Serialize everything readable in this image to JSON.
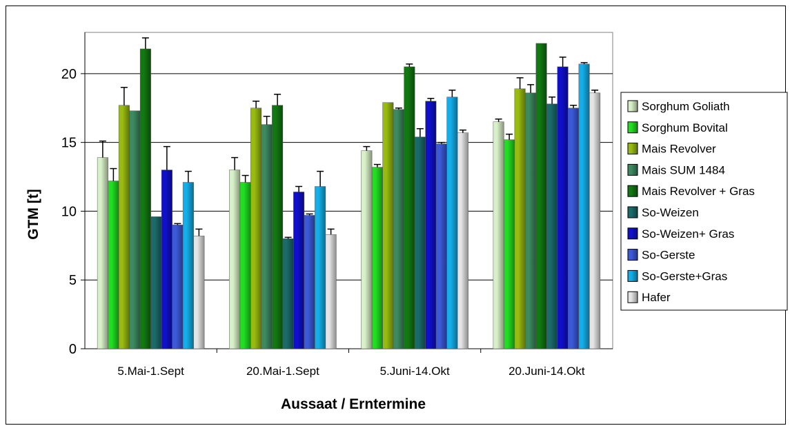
{
  "chart_data": {
    "type": "bar",
    "title": "",
    "xlabel": "Aussaat / Erntermine",
    "ylabel": "GTM [t]",
    "ylim": [
      0,
      23
    ],
    "yticks": [
      0,
      5,
      10,
      15,
      20
    ],
    "grid": true,
    "legend_position": "right",
    "categories": [
      "5.Mai-1.Sept",
      "20.Mai-1.Sept",
      "5.Juni-14.Okt",
      "20.Juni-14.Okt"
    ],
    "series": [
      {
        "name": "Sorghum Goliath",
        "color": "#d8f0c8",
        "values": [
          13.9,
          13.0,
          14.4,
          16.5
        ],
        "errors": [
          1.2,
          0.9,
          0.3,
          0.2
        ]
      },
      {
        "name": "Sorghum Bovital",
        "color": "#22dd22",
        "values": [
          12.2,
          12.1,
          13.2,
          15.2
        ],
        "errors": [
          0.9,
          0.5,
          0.2,
          0.4
        ]
      },
      {
        "name": "Mais Revolver",
        "color": "#99bb11",
        "values": [
          17.7,
          17.5,
          17.9,
          18.9
        ],
        "errors": [
          1.3,
          0.5,
          0.0,
          0.8
        ]
      },
      {
        "name": "Mais SUM 1484",
        "color": "#3d8a60",
        "values": [
          17.3,
          16.3,
          17.4,
          18.6
        ],
        "errors": [
          0.0,
          0.6,
          0.1,
          0.6
        ]
      },
      {
        "name": "Mais Revolver + Gras",
        "color": "#127812",
        "values": [
          21.8,
          17.7,
          20.5,
          22.2
        ],
        "errors": [
          0.8,
          0.8,
          0.2,
          0.0
        ]
      },
      {
        "name": "So-Weizen",
        "color": "#1c6b6b",
        "values": [
          9.6,
          8.0,
          15.4,
          17.8
        ],
        "errors": [
          0.0,
          0.1,
          0.6,
          0.5
        ]
      },
      {
        "name": "So-Weizen+ Gras",
        "color": "#1010cc",
        "values": [
          13.0,
          11.4,
          18.0,
          20.5
        ],
        "errors": [
          1.7,
          0.4,
          0.2,
          0.7
        ]
      },
      {
        "name": "So-Gerste",
        "color": "#3c5ad8",
        "values": [
          9.0,
          9.7,
          14.9,
          17.5
        ],
        "errors": [
          0.1,
          0.1,
          0.1,
          0.2
        ]
      },
      {
        "name": "So-Gerste+Gras",
        "color": "#15aee8",
        "values": [
          12.1,
          11.8,
          18.3,
          20.7
        ],
        "errors": [
          0.8,
          1.1,
          0.5,
          0.1
        ]
      },
      {
        "name": "Hafer",
        "color": "#e4e4e4",
        "values": [
          8.2,
          8.3,
          15.7,
          18.6
        ],
        "errors": [
          0.5,
          0.4,
          0.2,
          0.2
        ]
      }
    ]
  }
}
